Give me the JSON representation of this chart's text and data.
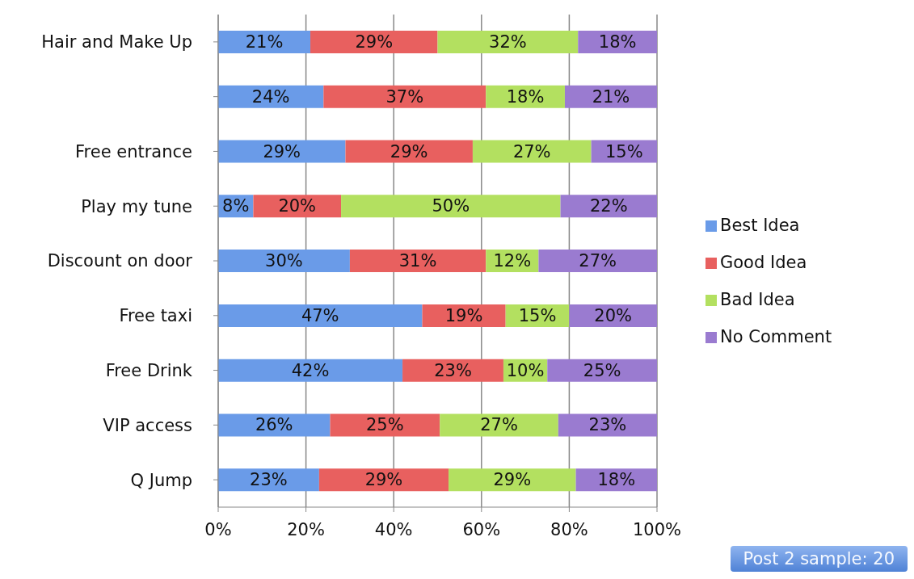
{
  "chart_data": {
    "type": "bar",
    "orientation": "horizontal",
    "stacked": true,
    "categories": [
      "Hair and Make Up",
      null,
      "Free entrance",
      "Play my tune",
      "Discount on  door",
      "Free taxi",
      "Free Drink",
      "VIP access",
      "Q Jump"
    ],
    "series": [
      {
        "name": "Best Idea",
        "color": "#6a9be8",
        "values": [
          21,
          24,
          29,
          8,
          30,
          46.5,
          42,
          25.5,
          23
        ],
        "value_labels": [
          "21%",
          "24%",
          "29%",
          "8%",
          "30%",
          "47%",
          "42%",
          "26%",
          "23%"
        ]
      },
      {
        "name": "Good Idea",
        "color": "#e8605f",
        "values": [
          29,
          37,
          29,
          20,
          31,
          19,
          23,
          25,
          29.5
        ],
        "value_labels": [
          "29%",
          "37%",
          "29%",
          "20%",
          "31%",
          "19%",
          "23%",
          "25%",
          "29%"
        ]
      },
      {
        "name": "Bad Idea",
        "color": "#b3e060",
        "values": [
          32,
          18,
          27,
          50,
          12,
          14.5,
          10,
          27,
          29
        ],
        "value_labels": [
          "32%",
          "18%",
          "27%",
          "50%",
          "12%",
          "15%",
          "10%",
          "27%",
          "29%"
        ]
      },
      {
        "name": "No Comment",
        "color": "#9a7bd0",
        "values": [
          18,
          21,
          15,
          22,
          27,
          20,
          25,
          22.5,
          18.5
        ],
        "value_labels": [
          "18%",
          "21%",
          "15%",
          "22%",
          "27%",
          "20%",
          "25%",
          "23%",
          "18%"
        ]
      }
    ],
    "xlim": [
      0,
      100
    ],
    "xticks": [
      {
        "value": 0,
        "label": "0%"
      },
      {
        "value": 20,
        "label": "20%"
      },
      {
        "value": 40,
        "label": "40%"
      },
      {
        "value": 60,
        "label": "60%"
      },
      {
        "value": 80,
        "label": "80%"
      },
      {
        "value": 100,
        "label": "100%"
      }
    ],
    "grid": "x",
    "legend": "right",
    "annotations": [
      "Post 2 sample: 20"
    ]
  }
}
